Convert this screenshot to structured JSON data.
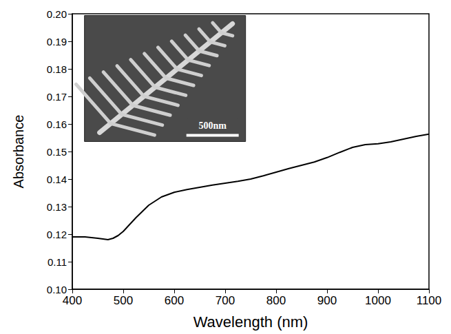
{
  "chart_data": {
    "type": "line",
    "x_label": "Wavelength (nm)",
    "y_label": "Absorbance",
    "annotations": [
      "500nm"
    ],
    "x": [
      400,
      425,
      450,
      470,
      480,
      490,
      500,
      525,
      550,
      575,
      600,
      625,
      650,
      675,
      700,
      725,
      750,
      775,
      800,
      825,
      850,
      875,
      900,
      925,
      950,
      975,
      1000,
      1025,
      1050,
      1075,
      1100
    ],
    "values": [
      0.119,
      0.119,
      0.1185,
      0.118,
      0.1185,
      0.1195,
      0.121,
      0.126,
      0.1305,
      0.1335,
      0.1352,
      0.1362,
      0.137,
      0.1378,
      0.1385,
      0.1392,
      0.14,
      0.1412,
      0.1425,
      0.1438,
      0.145,
      0.1462,
      0.1478,
      0.1497,
      0.1515,
      0.1525,
      0.1528,
      0.1535,
      0.1545,
      0.1555,
      0.1563
    ],
    "color": "#000000",
    "xlim": [
      400,
      1100
    ],
    "xticks": [
      400,
      500,
      600,
      700,
      800,
      900,
      1000,
      1100
    ],
    "ylim": [
      0.1,
      0.2
    ],
    "yticks": [
      {
        "value": 0.1,
        "label": "0.10"
      },
      0.11,
      0.12,
      0.13,
      0.14,
      0.15,
      0.16,
      0.17,
      0.18,
      0.19,
      {
        "value": 0.2,
        "label": "0.20"
      }
    ],
    "grid": false
  }
}
